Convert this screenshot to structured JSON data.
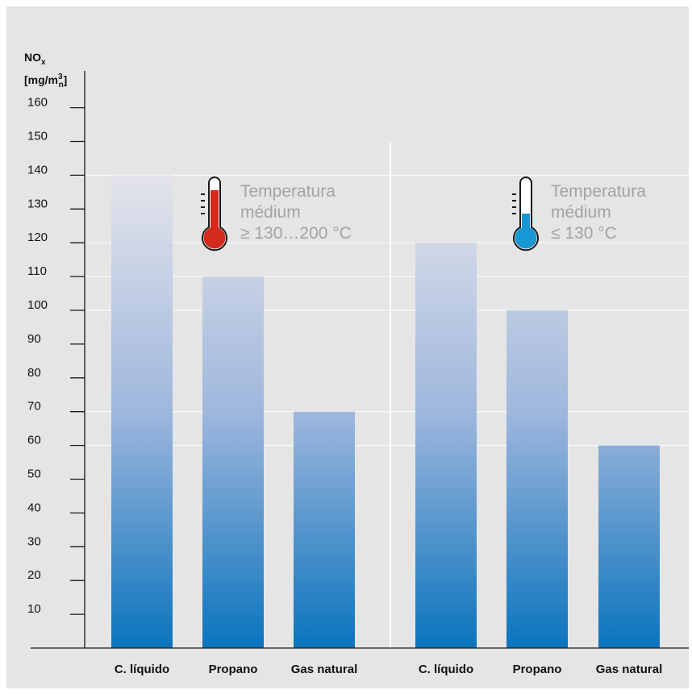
{
  "chart_data": {
    "type": "bar",
    "ylabel": {
      "line1_base": "NO",
      "line1_sub": "x",
      "line2_a": "[mg/m",
      "line2_sup": "3",
      "line2_sub": "n",
      "line2_b": "]"
    },
    "ylim": [
      0,
      170
    ],
    "yticks": [
      10,
      20,
      30,
      40,
      50,
      60,
      70,
      80,
      90,
      100,
      110,
      120,
      130,
      140,
      150,
      160
    ],
    "grid": true,
    "groups": [
      {
        "annotation": {
          "lines": [
            "Temperatura",
            "médium",
            "≥ 130…200 °C"
          ],
          "icon": "thermometer-hot-icon",
          "color": "#d42b1e"
        },
        "categories": [
          "C. líquido",
          "Propano",
          "Gas natural"
        ],
        "values": [
          140,
          110,
          70
        ]
      },
      {
        "annotation": {
          "lines": [
            "Temperatura",
            "médium",
            "≤ 130 °C"
          ],
          "icon": "thermometer-cold-icon",
          "color": "#1797d3"
        },
        "categories": [
          "C. líquido",
          "Propano",
          "Gas natural"
        ],
        "values": [
          120,
          100,
          60
        ]
      }
    ],
    "colors": {
      "background": "#e5e5e5",
      "gradient_bottom": "#0a74bd",
      "gradient_mid": "#9fb7dd",
      "gradient_top": "#e3e4ea",
      "grid": "#ffffff",
      "axis": "#1a1a1a",
      "annotation_text": "#a3a3a3"
    }
  }
}
